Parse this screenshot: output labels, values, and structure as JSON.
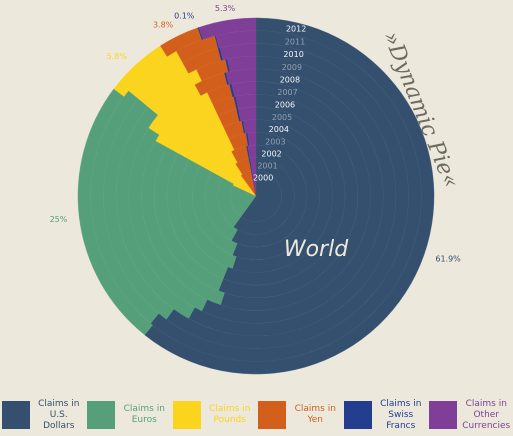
{
  "chart_data": {
    "type": "polar-pie",
    "title": "»Dynamic Pie«",
    "subtitle": "World",
    "categories": [
      "2000",
      "2001",
      "2002",
      "2003",
      "2004",
      "2005",
      "2006",
      "2007",
      "2008",
      "2009",
      "2010",
      "2011",
      "2012"
    ],
    "series": [
      {
        "name": "Claims in U.S. Dollars",
        "color": "#34506e",
        "values": [
          60,
          60,
          58,
          56,
          55,
          56,
          56,
          55,
          57,
          58,
          60,
          61,
          61.9
        ],
        "value_labels": {
          "12": "61.9%"
        }
      },
      {
        "name": "Claims in Euros",
        "color": "#55a07a",
        "values": [
          22,
          23,
          25,
          27,
          28,
          27,
          27,
          28,
          27,
          28,
          26,
          25,
          25
        ],
        "value_labels": {
          "12": "25%"
        }
      },
      {
        "name": "Claims in Pounds",
        "color": "#fbd41e",
        "values": [
          8,
          8,
          9,
          10,
          10,
          10,
          10,
          10,
          8,
          7,
          6,
          6,
          5.8
        ],
        "value_labels": {
          "12": "5.8%"
        }
      },
      {
        "name": "Claims in Yen",
        "color": "#d35f1c",
        "values": [
          7,
          6,
          5,
          4.5,
          4,
          3.5,
          3.5,
          3.3,
          4,
          3.5,
          4,
          4,
          3.8
        ],
        "value_labels": {
          "12": "3.8%"
        }
      },
      {
        "name": "Claims in Swiss Francs",
        "color": "#233d8f",
        "values": [
          0.5,
          0.5,
          0.4,
          0.4,
          0.3,
          0.3,
          0.3,
          0.3,
          0.2,
          0.2,
          0.2,
          0.1,
          0.1
        ],
        "value_labels": {
          "12": "0.1%"
        }
      },
      {
        "name": "Claims in Other Currencies",
        "color": "#7f3f98",
        "values": [
          2.5,
          2.5,
          2.6,
          2.1,
          2.7,
          3.2,
          3.2,
          3.4,
          3.8,
          3.3,
          3.8,
          3.9,
          5.3
        ],
        "value_labels": {
          "12": "5.3%"
        }
      }
    ]
  }
}
